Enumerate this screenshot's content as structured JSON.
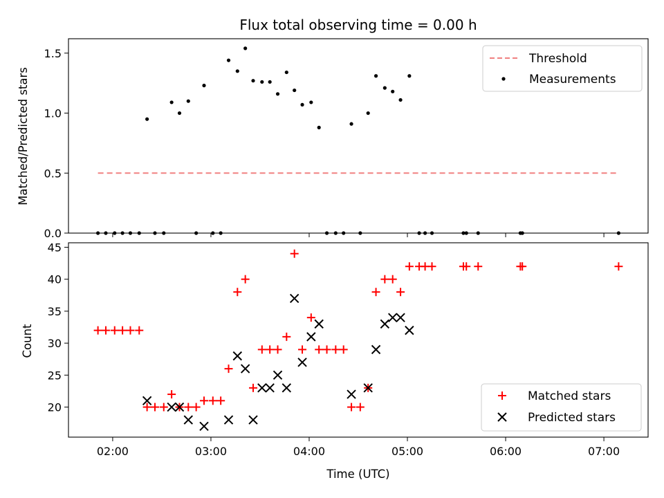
{
  "chart_data": [
    {
      "type": "scatter",
      "title": "Flux total observing time = 0.00 h",
      "xlabel": "",
      "ylabel": "Matched/Predicted stars",
      "ylim": [
        0.0,
        1.62
      ],
      "yticks": [
        0.0,
        0.5,
        1.0,
        1.5
      ],
      "ytick_labels": [
        "0.0",
        "0.5",
        "1.0",
        "1.5"
      ],
      "x_unit": "hours UTC",
      "xlim": [
        1.55,
        7.45
      ],
      "grid": false,
      "legend_position": "top-right",
      "legend": [
        "Threshold",
        "Measurements"
      ],
      "threshold": {
        "name": "Threshold",
        "value": 0.5,
        "x_range": [
          1.85,
          7.15
        ],
        "color": "#f08080"
      },
      "series": [
        {
          "name": "Measurements",
          "color": "#000000",
          "marker": "dot",
          "points": [
            [
              1.85,
              0.0
            ],
            [
              1.93,
              0.0
            ],
            [
              2.02,
              0.0
            ],
            [
              2.1,
              0.0
            ],
            [
              2.18,
              0.0
            ],
            [
              2.27,
              0.0
            ],
            [
              2.35,
              0.95
            ],
            [
              2.43,
              0.0
            ],
            [
              2.52,
              0.0
            ],
            [
              2.6,
              1.09
            ],
            [
              2.68,
              1.0
            ],
            [
              2.77,
              1.1
            ],
            [
              2.85,
              0.0
            ],
            [
              2.93,
              1.23
            ],
            [
              3.02,
              0.0
            ],
            [
              3.1,
              0.0
            ],
            [
              3.18,
              1.44
            ],
            [
              3.27,
              1.35
            ],
            [
              3.35,
              1.54
            ],
            [
              3.43,
              1.27
            ],
            [
              3.52,
              1.26
            ],
            [
              3.6,
              1.26
            ],
            [
              3.68,
              1.16
            ],
            [
              3.77,
              1.34
            ],
            [
              3.85,
              1.19
            ],
            [
              3.93,
              1.07
            ],
            [
              4.02,
              1.09
            ],
            [
              4.1,
              0.88
            ],
            [
              4.18,
              0.0
            ],
            [
              4.27,
              0.0
            ],
            [
              4.35,
              0.0
            ],
            [
              4.43,
              0.91
            ],
            [
              4.52,
              0.0
            ],
            [
              4.6,
              1.0
            ],
            [
              4.68,
              1.31
            ],
            [
              4.77,
              1.21
            ],
            [
              4.85,
              1.18
            ],
            [
              4.93,
              1.11
            ],
            [
              5.02,
              1.31
            ],
            [
              5.12,
              0.0
            ],
            [
              5.18,
              0.0
            ],
            [
              5.25,
              0.0
            ],
            [
              5.57,
              0.0
            ],
            [
              5.6,
              0.0
            ],
            [
              5.72,
              0.0
            ],
            [
              6.15,
              0.0
            ],
            [
              6.17,
              0.0
            ],
            [
              7.15,
              0.0
            ]
          ]
        }
      ]
    },
    {
      "type": "scatter",
      "title": "",
      "xlabel": "Time (UTC)",
      "ylabel": "Count",
      "ylim": [
        15.3,
        45.7
      ],
      "yticks": [
        20,
        25,
        30,
        35,
        40,
        45
      ],
      "ytick_labels": [
        "20",
        "25",
        "30",
        "35",
        "40",
        "45"
      ],
      "xlim": [
        1.55,
        7.45
      ],
      "xticks": [
        2,
        3,
        4,
        5,
        6,
        7
      ],
      "xtick_labels": [
        "02:00",
        "03:00",
        "04:00",
        "05:00",
        "06:00",
        "07:00"
      ],
      "grid": false,
      "legend_position": "bottom-right",
      "legend": [
        "Matched stars",
        "Predicted stars"
      ],
      "series": [
        {
          "name": "Matched stars",
          "color": "#ff0000",
          "marker": "plus",
          "points": [
            [
              1.85,
              32
            ],
            [
              1.93,
              32
            ],
            [
              2.02,
              32
            ],
            [
              2.1,
              32
            ],
            [
              2.18,
              32
            ],
            [
              2.27,
              32
            ],
            [
              2.35,
              20
            ],
            [
              2.43,
              20
            ],
            [
              2.52,
              20
            ],
            [
              2.6,
              22
            ],
            [
              2.68,
              20
            ],
            [
              2.77,
              20
            ],
            [
              2.85,
              20
            ],
            [
              2.93,
              21
            ],
            [
              3.02,
              21
            ],
            [
              3.1,
              21
            ],
            [
              3.18,
              26
            ],
            [
              3.27,
              38
            ],
            [
              3.35,
              40
            ],
            [
              3.43,
              23
            ],
            [
              3.52,
              29
            ],
            [
              3.6,
              29
            ],
            [
              3.68,
              29
            ],
            [
              3.77,
              31
            ],
            [
              3.85,
              44
            ],
            [
              3.93,
              29
            ],
            [
              4.02,
              34
            ],
            [
              4.1,
              29
            ],
            [
              4.18,
              29
            ],
            [
              4.27,
              29
            ],
            [
              4.35,
              29
            ],
            [
              4.43,
              20
            ],
            [
              4.52,
              20
            ],
            [
              4.6,
              23
            ],
            [
              4.68,
              38
            ],
            [
              4.77,
              40
            ],
            [
              4.85,
              40
            ],
            [
              4.93,
              38
            ],
            [
              5.02,
              42
            ],
            [
              5.12,
              42
            ],
            [
              5.18,
              42
            ],
            [
              5.25,
              42
            ],
            [
              5.57,
              42
            ],
            [
              5.6,
              42
            ],
            [
              5.72,
              42
            ],
            [
              6.15,
              42
            ],
            [
              6.17,
              42
            ],
            [
              7.15,
              42
            ]
          ]
        },
        {
          "name": "Predicted stars",
          "color": "#000000",
          "marker": "x",
          "points": [
            [
              2.35,
              21
            ],
            [
              2.6,
              20
            ],
            [
              2.68,
              20
            ],
            [
              2.77,
              18
            ],
            [
              2.93,
              17
            ],
            [
              3.18,
              18
            ],
            [
              3.27,
              28
            ],
            [
              3.35,
              26
            ],
            [
              3.43,
              18
            ],
            [
              3.52,
              23
            ],
            [
              3.6,
              23
            ],
            [
              3.68,
              25
            ],
            [
              3.77,
              23
            ],
            [
              3.85,
              37
            ],
            [
              3.93,
              27
            ],
            [
              4.02,
              31
            ],
            [
              4.1,
              33
            ],
            [
              4.43,
              22
            ],
            [
              4.6,
              23
            ],
            [
              4.68,
              29
            ],
            [
              4.77,
              33
            ],
            [
              4.85,
              34
            ],
            [
              4.93,
              34
            ],
            [
              5.02,
              32
            ]
          ]
        }
      ]
    }
  ]
}
